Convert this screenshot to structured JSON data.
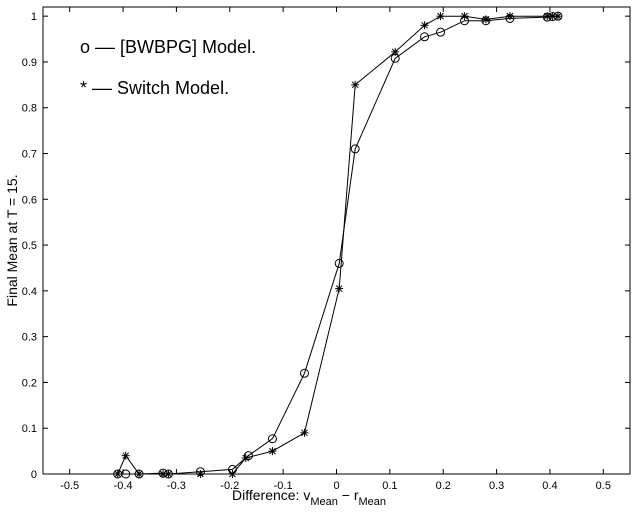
{
  "chart_data": {
    "type": "line",
    "xlabel": {
      "text": "Difference: v",
      "sub1": "Mean",
      "mid": " − r",
      "sub2": "Mean"
    },
    "ylabel": "Final Mean at T = 15.",
    "xlim": [
      -0.55,
      0.55
    ],
    "ylim": [
      0,
      1.02
    ],
    "xticks": [
      "-0.5",
      "-0.4",
      "-0.3",
      "-0.2",
      "-0.1",
      "0",
      "0.1",
      "0.2",
      "0.3",
      "0.4",
      "0.5"
    ],
    "xtick_values": [
      -0.5,
      -0.4,
      -0.3,
      -0.2,
      -0.1,
      0,
      0.1,
      0.2,
      0.3,
      0.4,
      0.5
    ],
    "yticks": [
      "0",
      "0.1",
      "0.2",
      "0.3",
      "0.4",
      "0.5",
      "0.6",
      "0.7",
      "0.8",
      "0.9",
      "1"
    ],
    "ytick_values": [
      0,
      0.1,
      0.2,
      0.3,
      0.4,
      0.5,
      0.6,
      0.7,
      0.8,
      0.9,
      1.0
    ],
    "grid": false,
    "legend_placement": "top-left",
    "legend": [
      {
        "marker": "o",
        "text": "o –– [BWBPG] Model."
      },
      {
        "marker": "*",
        "text": "* –– Switch Model."
      }
    ],
    "series": [
      {
        "name": "[BWBPG] Model.",
        "marker": "o",
        "x": [
          -0.41,
          -0.395,
          -0.37,
          -0.325,
          -0.315,
          -0.255,
          -0.195,
          -0.165,
          -0.12,
          -0.06,
          0.005,
          0.035,
          0.11,
          0.165,
          0.195,
          0.24,
          0.28,
          0.325,
          0.395,
          0.405,
          0.415
        ],
        "y": [
          0.0,
          0.0,
          0.0,
          0.002,
          0.0,
          0.005,
          0.01,
          0.04,
          0.077,
          0.22,
          0.46,
          0.71,
          0.908,
          0.955,
          0.965,
          0.99,
          0.99,
          0.995,
          0.998,
          0.999,
          1.0
        ]
      },
      {
        "name": "Switch Model.",
        "marker": "*",
        "x": [
          -0.41,
          -0.395,
          -0.37,
          -0.325,
          -0.315,
          -0.255,
          -0.195,
          -0.17,
          -0.12,
          -0.06,
          0.005,
          0.035,
          0.11,
          0.165,
          0.195,
          0.24,
          0.28,
          0.325,
          0.395,
          0.405,
          0.415
        ],
        "y": [
          0.0,
          0.04,
          0.0,
          0.0,
          0.0,
          0.0,
          0.0,
          0.035,
          0.05,
          0.09,
          0.405,
          0.85,
          0.922,
          0.98,
          1.0,
          1.0,
          0.993,
          1.0,
          1.0,
          1.0,
          1.0
        ]
      }
    ]
  }
}
